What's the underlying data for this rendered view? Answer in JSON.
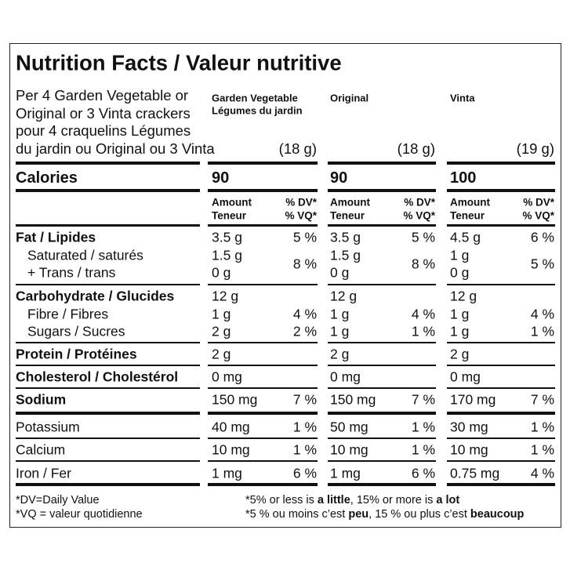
{
  "title": "Nutrition Facts / Valeur nutritive",
  "serving": [
    "Per 4 Garden Vegetable or",
    "Original or 3 Vinta crackers",
    "pour 4 craquelins Légumes",
    "du jardin ou Original ou 3 Vinta"
  ],
  "columns": [
    {
      "name": [
        "Garden Vegetable",
        "Légumes du jardin"
      ],
      "size": "(18 g)",
      "calories": "90"
    },
    {
      "name": [
        "Original"
      ],
      "size": "(18 g)",
      "calories": "90"
    },
    {
      "name": [
        "Vinta"
      ],
      "size": "(19 g)",
      "calories": "100"
    }
  ],
  "calories_label": "Calories",
  "amount_header": [
    "Amount",
    "Teneur"
  ],
  "dv_header": [
    "% DV*",
    "% VQ*"
  ],
  "sections": [
    {
      "rows": [
        {
          "label": [
            "Fat / Lipides"
          ],
          "bold": true,
          "amounts": [
            [
              "3.5 g"
            ],
            [
              "3.5 g"
            ],
            [
              "4.5 g"
            ]
          ],
          "dv": [
            "5 %",
            "5 %",
            "6 %"
          ]
        },
        {
          "label": [
            "Saturated / saturés",
            "+ Trans / trans"
          ],
          "indent": true,
          "amounts": [
            [
              "1.5 g",
              "0 g"
            ],
            [
              "1.5 g",
              "0 g"
            ],
            [
              "1 g",
              "0 g"
            ]
          ],
          "dv": [
            "8 %",
            "8 %",
            "5 %"
          ]
        }
      ]
    },
    {
      "rows": [
        {
          "label": [
            "Carbohydrate / Glucides"
          ],
          "bold": true,
          "amounts": [
            [
              "12 g"
            ],
            [
              "12 g"
            ],
            [
              "12 g"
            ]
          ]
        },
        {
          "label": [
            "Fibre / Fibres"
          ],
          "indent": true,
          "amounts": [
            [
              "1 g"
            ],
            [
              "1 g"
            ],
            [
              "1 g"
            ]
          ],
          "dv": [
            "4 %",
            "4 %",
            "4 %"
          ]
        },
        {
          "label": [
            "Sugars / Sucres"
          ],
          "indent": true,
          "amounts": [
            [
              "2 g"
            ],
            [
              "1 g"
            ],
            [
              "1 g"
            ]
          ],
          "dv": [
            "2 %",
            "1 %",
            "1 %"
          ]
        }
      ]
    },
    {
      "rows": [
        {
          "label": [
            "Protein / Protéines"
          ],
          "bold": true,
          "amounts": [
            [
              "2 g"
            ],
            [
              "2 g"
            ],
            [
              "2 g"
            ]
          ]
        }
      ]
    },
    {
      "rows": [
        {
          "label": [
            "Cholesterol / Cholestérol"
          ],
          "bold": true,
          "amounts": [
            [
              "0 mg"
            ],
            [
              "0 mg"
            ],
            [
              "0 mg"
            ]
          ]
        }
      ]
    },
    {
      "rows": [
        {
          "label": [
            "Sodium"
          ],
          "bold": true,
          "amounts": [
            [
              "150 mg"
            ],
            [
              "150 mg"
            ],
            [
              "170 mg"
            ]
          ],
          "dv": [
            "7 %",
            "7 %",
            "7 %"
          ]
        }
      ]
    },
    {
      "rows": [
        {
          "label": [
            "Potassium"
          ],
          "amounts": [
            [
              "40 mg"
            ],
            [
              "50 mg"
            ],
            [
              "30 mg"
            ]
          ],
          "dv": [
            "1 %",
            "1 %",
            "1 %"
          ]
        }
      ]
    },
    {
      "rows": [
        {
          "label": [
            "Calcium"
          ],
          "amounts": [
            [
              "10 mg"
            ],
            [
              "10 mg"
            ],
            [
              "10 mg"
            ]
          ],
          "dv": [
            "1 %",
            "1 %",
            "1 %"
          ]
        }
      ]
    },
    {
      "rows": [
        {
          "label": [
            "Iron / Fer"
          ],
          "amounts": [
            [
              "1 mg"
            ],
            [
              "1 mg"
            ],
            [
              "0.75 mg"
            ]
          ],
          "dv": [
            "6 %",
            "6 %",
            "4 %"
          ]
        }
      ]
    }
  ],
  "footnotes": {
    "left": [
      "*DV=Daily Value",
      "*VQ = valeur quotidienne"
    ],
    "right": [
      [
        {
          "text": "*5% or less is ",
          "bold": false
        },
        {
          "text": "a little",
          "bold": true
        },
        {
          "text": ", 15% or more is ",
          "bold": false
        },
        {
          "text": "a lot",
          "bold": true
        }
      ],
      [
        {
          "text": "*5 % ou moins c’est ",
          "bold": false
        },
        {
          "text": "peu",
          "bold": true
        },
        {
          "text": ", 15 % ou plus c’est ",
          "bold": false
        },
        {
          "text": "beaucoup",
          "bold": true
        }
      ]
    ]
  }
}
